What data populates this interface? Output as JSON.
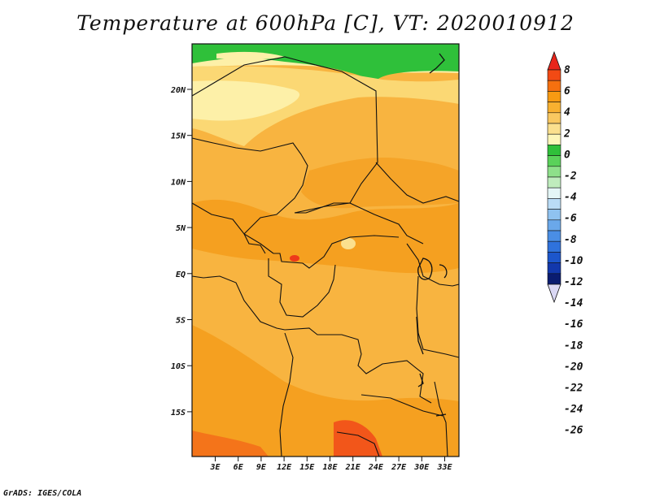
{
  "title": "Temperature at 600hPa [C], VT: 2020010912",
  "credit": "GrADS: IGES/COLA",
  "map": {
    "variable": "Temperature",
    "level": "600hPa",
    "units": "C",
    "valid_time": "2020010912",
    "lat_labels": [
      "20N",
      "15N",
      "10N",
      "5N",
      "EQ",
      "5S",
      "10S",
      "15S"
    ],
    "lon_labels": [
      "3E",
      "6E",
      "9E",
      "12E",
      "15E",
      "18E",
      "21E",
      "24E",
      "27E",
      "30E",
      "33E"
    ],
    "lat_range": [
      -20,
      25
    ],
    "lon_range": [
      0,
      35
    ]
  },
  "colorbar": {
    "labels": [
      "8",
      "6",
      "4",
      "2",
      "0",
      "-2",
      "-4",
      "-6",
      "-8",
      "-10",
      "-12",
      "-14",
      "-16",
      "-18",
      "-20",
      "-22",
      "-24",
      "-26"
    ],
    "colors": [
      "#e8251b",
      "#f24a14",
      "#f5700f",
      "#f79a12",
      "#f8b030",
      "#f9c860",
      "#fbe08e",
      "#fdf6b8",
      "#2fc03a",
      "#5ad25a",
      "#8ee08a",
      "#bfecbd",
      "#e4f6f6",
      "#b9dcf6",
      "#8fc2f0",
      "#6aa8ea",
      "#4a8ee4",
      "#2f72dc",
      "#1c56cc",
      "#1238ac",
      "#0a1c70",
      "#dad8f4"
    ]
  }
}
